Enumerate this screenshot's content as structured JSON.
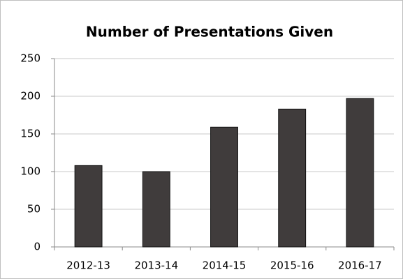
{
  "chart_data": {
    "type": "bar",
    "title": "Number of Presentations Given",
    "categories": [
      "2012-13",
      "2013-14",
      "2014-15",
      "2015-16",
      "2016-17"
    ],
    "values": [
      108,
      100,
      159,
      183,
      197
    ],
    "color": "#403c3c",
    "ylim": [
      0,
      250
    ],
    "yticks": [
      0,
      50,
      100,
      150,
      200,
      250
    ],
    "grid": true
  }
}
